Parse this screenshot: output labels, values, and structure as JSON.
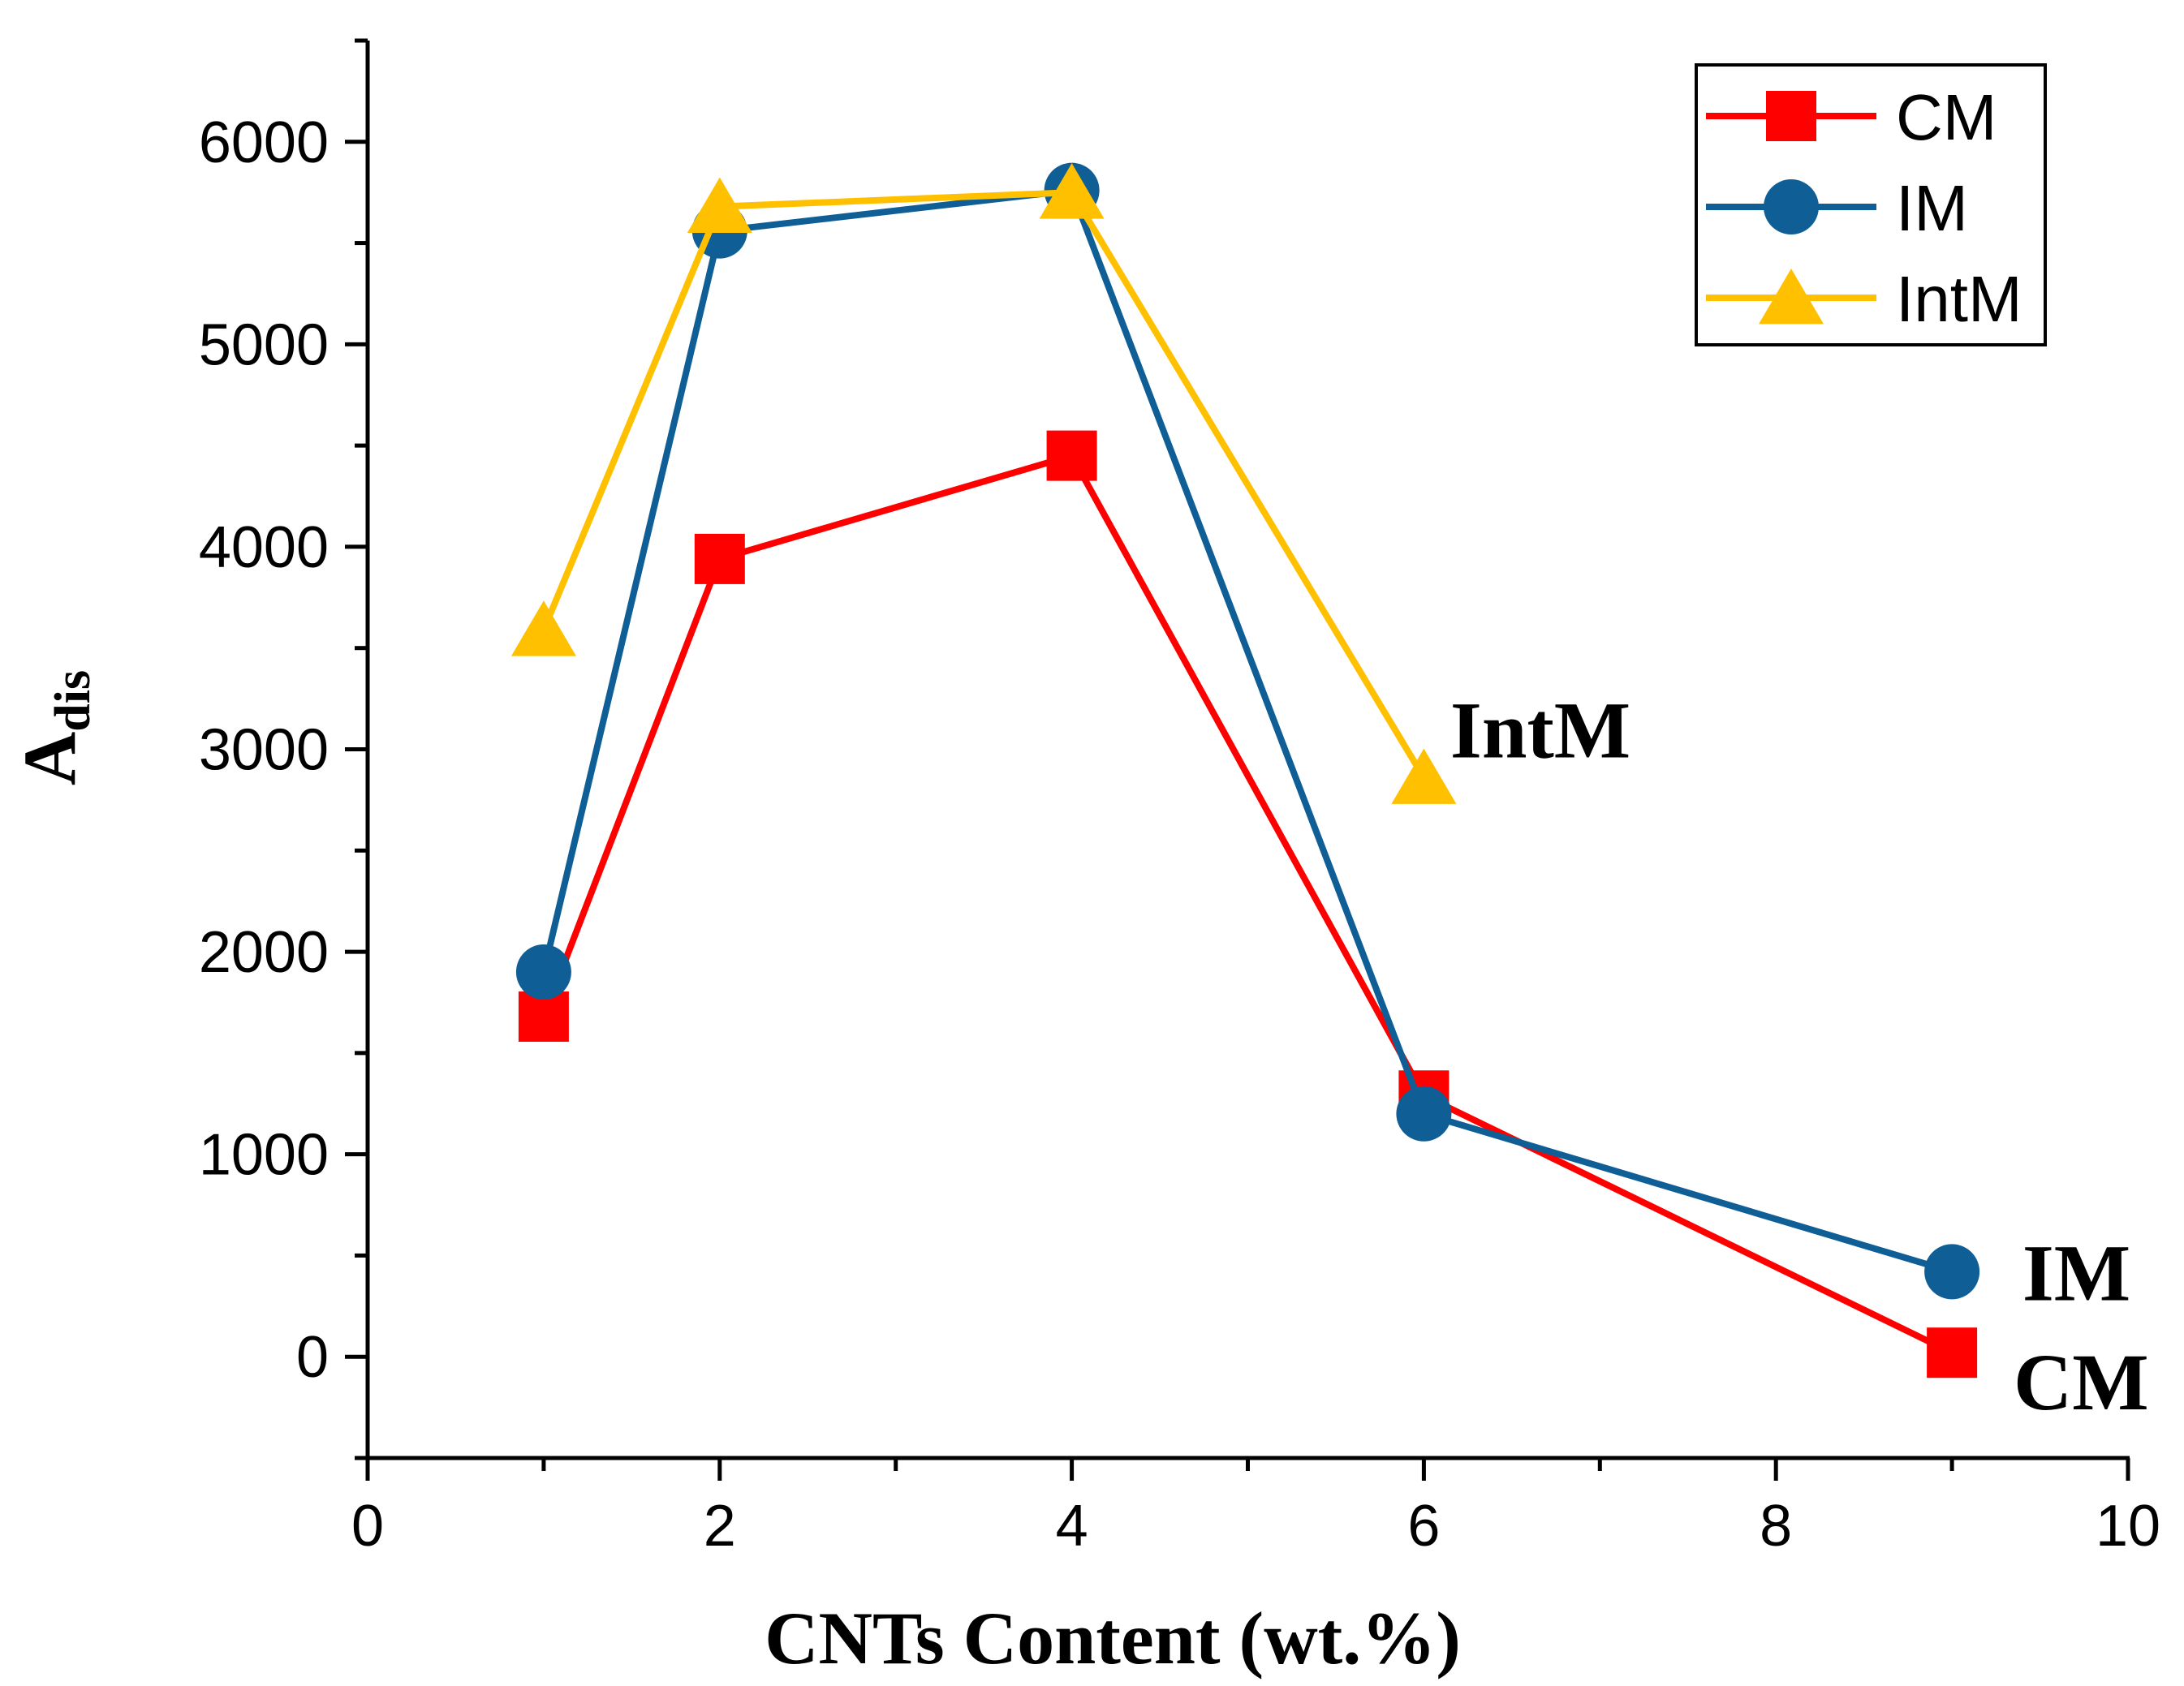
{
  "chart_data": {
    "type": "line",
    "title": "",
    "xlabel": "CNTs Content (wt.%)",
    "ylabel_main": "A",
    "ylabel_sub": "dis",
    "xlim": [
      0,
      10
    ],
    "ylim": [
      -500,
      6500
    ],
    "xticks": [
      0,
      2,
      4,
      6,
      8,
      10
    ],
    "yticks": [
      0,
      1000,
      2000,
      3000,
      4000,
      5000,
      6000
    ],
    "grid": false,
    "legend_position": "top-right",
    "series": [
      {
        "name": "CM",
        "color": "#ff0000",
        "marker": "square",
        "x": [
          1,
          2,
          4,
          6,
          9
        ],
        "y": [
          1680,
          3940,
          4450,
          1290,
          20
        ]
      },
      {
        "name": "IM",
        "color": "#0f5f96",
        "marker": "circle",
        "x": [
          1,
          2,
          4,
          6,
          9
        ],
        "y": [
          1900,
          5560,
          5760,
          1200,
          420
        ]
      },
      {
        "name": "IntM",
        "color": "#ffc000",
        "marker": "triangle",
        "x": [
          1,
          2,
          4,
          6
        ],
        "y": [
          3590,
          5680,
          5750,
          2860
        ]
      }
    ],
    "annotations": [
      {
        "text": "IntM",
        "x": 6.15,
        "y": 3100
      },
      {
        "text": "IM",
        "x": 9.4,
        "y": 420
      },
      {
        "text": "CM",
        "x": 9.35,
        "y": -120
      }
    ]
  }
}
